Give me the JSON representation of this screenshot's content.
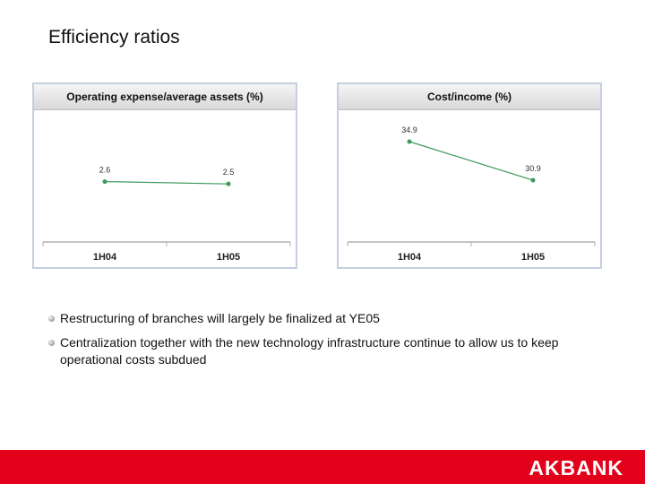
{
  "page": {
    "title": "Efficiency ratios",
    "bullets": [
      "Restructuring of branches will largely be finalized at YE05",
      "Centralization together with the new technology infrastructure continue to allow us to keep operational costs subdued"
    ],
    "logo_text": "AKBANK",
    "colors": {
      "series_line": "#3a9a5a",
      "footer": "#e3001b",
      "panel_border": "#c5cfdf"
    }
  },
  "chart_data": [
    {
      "type": "line",
      "title": "Operating expense/average assets (%)",
      "categories": [
        "1H04",
        "1H05"
      ],
      "series": [
        {
          "values": [
            2.6,
            2.5
          ]
        }
      ],
      "ylim": [
        0,
        5.4
      ],
      "grid": false,
      "legend": "none"
    },
    {
      "type": "line",
      "title": "Cost/income (%)",
      "categories": [
        "1H04",
        "1H05"
      ],
      "series": [
        {
          "values": [
            34.9,
            30.9
          ]
        }
      ],
      "ylim": [
        24.5,
        37.5
      ],
      "grid": false,
      "legend": "none"
    }
  ]
}
